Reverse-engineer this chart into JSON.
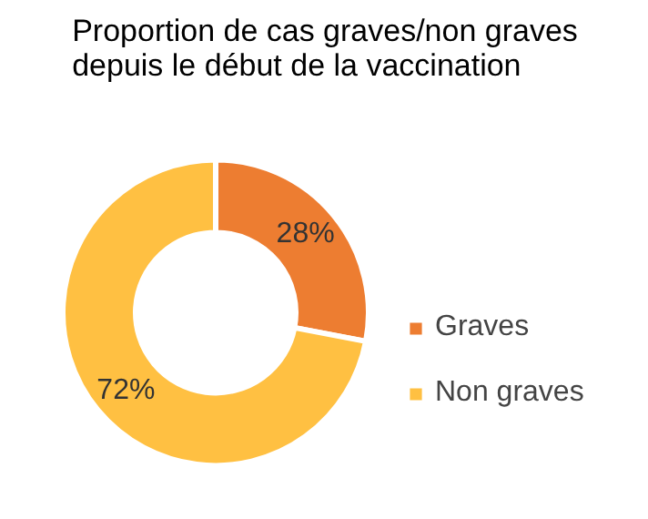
{
  "chart_data": {
    "type": "donut",
    "title": "Proportion de cas graves/non graves\ndepuis le début de la vaccination",
    "categories": [
      "Graves",
      "Non graves"
    ],
    "values": [
      28,
      72
    ],
    "colors": [
      "#ed7d31",
      "#ffc042"
    ],
    "value_labels": [
      "28%",
      "72%"
    ],
    "legend": "right"
  }
}
